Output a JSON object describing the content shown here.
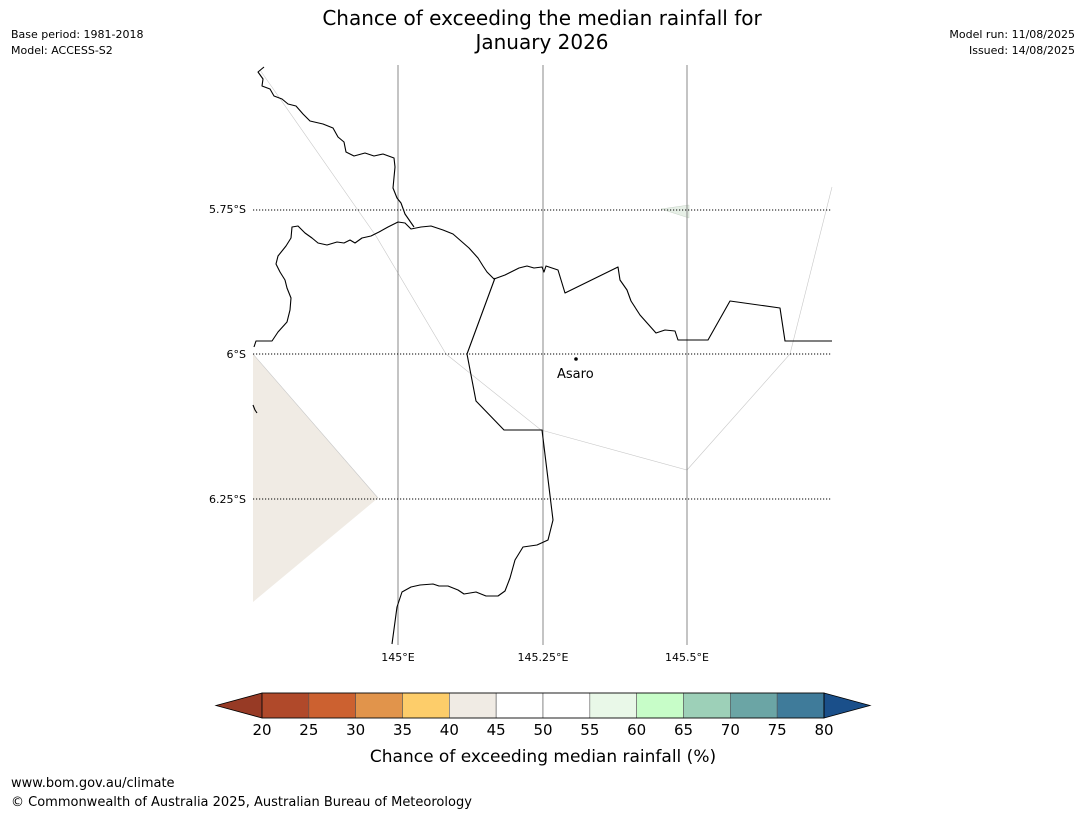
{
  "title": {
    "line1": "Chance of exceeding the median rainfall for",
    "line2": "January 2026"
  },
  "meta": {
    "base_period": "Base period: 1981-2018",
    "model": "Model: ACCESS-S2",
    "model_run": "Model run: 11/08/2025",
    "issued": "Issued: 14/08/2025"
  },
  "map": {
    "lat_labels": [
      "5.75°S",
      "6°S",
      "6.25°S"
    ],
    "lon_labels": [
      "145°E",
      "145.25°E",
      "145.5°E"
    ],
    "place": {
      "name": "Asaro"
    },
    "shaded_category": "40-45",
    "shaded_color": "#f0ebe4"
  },
  "colorbar": {
    "label": "Chance of exceeding median rainfall (%)",
    "ticks": [
      "20",
      "25",
      "30",
      "35",
      "40",
      "45",
      "50",
      "55",
      "60",
      "65",
      "70",
      "75",
      "80"
    ],
    "colors": [
      "#b0492a",
      "#cc6130",
      "#e1944b",
      "#fdcd6a",
      "#f0ebe4",
      "#ffffff",
      "#ffffff",
      "#e9f8e8",
      "#c7fdc8",
      "#9dd0b8",
      "#6ba5a5",
      "#3f7b9a"
    ],
    "under_color": "#973a25",
    "over_color": "#1a4f8a"
  },
  "footer": {
    "url": "www.bom.gov.au/climate",
    "copyright": "© Commonwealth of Australia 2025, Australian Bureau of Meteorology"
  }
}
